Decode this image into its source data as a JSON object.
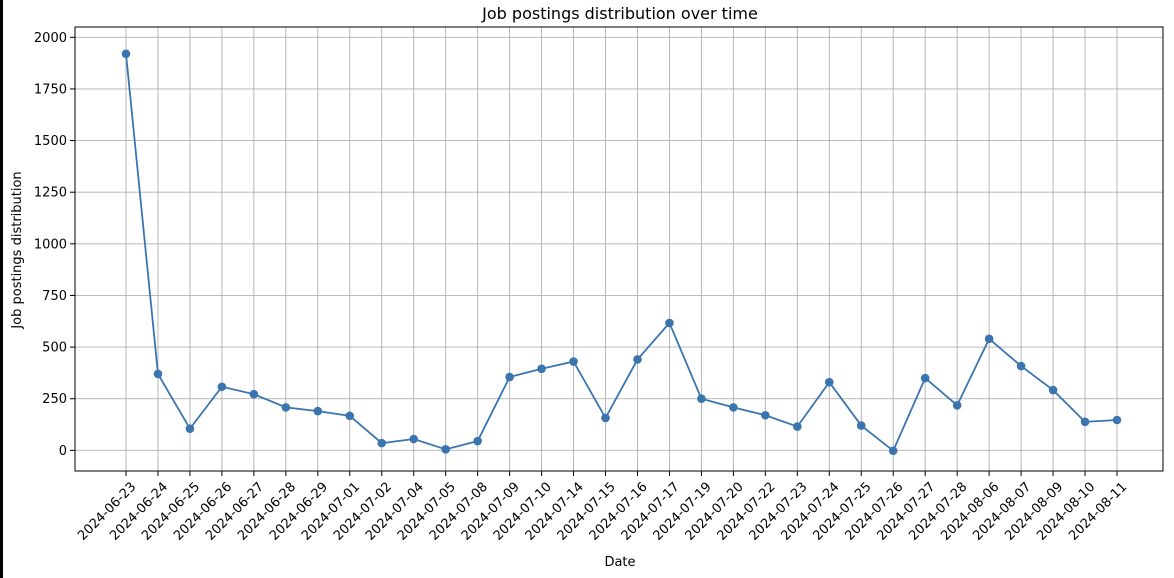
{
  "chart_data": {
    "type": "line",
    "title": "Job postings distribution over time",
    "xlabel": "Date",
    "ylabel": "Job postings distribution",
    "categories": [
      "2024-06-23",
      "2024-06-24",
      "2024-06-25",
      "2024-06-26",
      "2024-06-27",
      "2024-06-28",
      "2024-06-29",
      "2024-07-01",
      "2024-07-02",
      "2024-07-04",
      "2024-07-05",
      "2024-07-08",
      "2024-07-09",
      "2024-07-10",
      "2024-07-14",
      "2024-07-15",
      "2024-07-16",
      "2024-07-17",
      "2024-07-19",
      "2024-07-20",
      "2024-07-22",
      "2024-07-23",
      "2024-07-24",
      "2024-07-25",
      "2024-07-26",
      "2024-07-27",
      "2024-07-28",
      "2024-08-06",
      "2024-08-07",
      "2024-08-09",
      "2024-08-10",
      "2024-08-11"
    ],
    "series": [
      {
        "values": [
          1920,
          370,
          105,
          308,
          272,
          208,
          190,
          167,
          35,
          55,
          5,
          45,
          355,
          395,
          430,
          157,
          440,
          617,
          250,
          208,
          170,
          115,
          330,
          120,
          -2,
          350,
          218,
          540,
          408,
          292,
          138,
          147
        ]
      }
    ],
    "ylim": [
      -100,
      2050
    ],
    "yticks": [
      0,
      250,
      500,
      750,
      1000,
      1250,
      1500,
      1750,
      2000
    ],
    "grid": true,
    "line_color": "#3a75b0",
    "marker": "circle"
  }
}
